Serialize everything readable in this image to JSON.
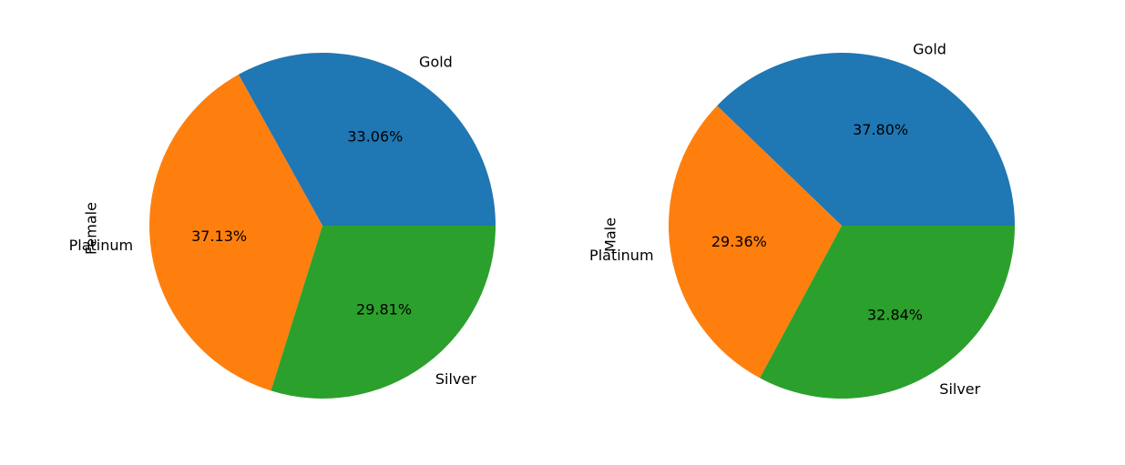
{
  "chart_data": [
    {
      "type": "pie",
      "ylabel": "Female",
      "categories": [
        "Gold",
        "Platinum",
        "Silver"
      ],
      "values": [
        33.06,
        37.13,
        29.81
      ],
      "percent_labels": [
        "33.06%",
        "37.13%",
        "29.81%"
      ],
      "colors": [
        "#1f77b4",
        "#ff7f0e",
        "#2ca02c"
      ],
      "start_angle_deg": 0,
      "direction": "counterclockwise"
    },
    {
      "type": "pie",
      "ylabel": "Male",
      "categories": [
        "Gold",
        "Platinum",
        "Silver"
      ],
      "values": [
        37.8,
        29.36,
        32.84
      ],
      "percent_labels": [
        "37.80%",
        "29.36%",
        "32.84%"
      ],
      "colors": [
        "#1f77b4",
        "#ff7f0e",
        "#2ca02c"
      ],
      "start_angle_deg": 0,
      "direction": "counterclockwise"
    }
  ]
}
